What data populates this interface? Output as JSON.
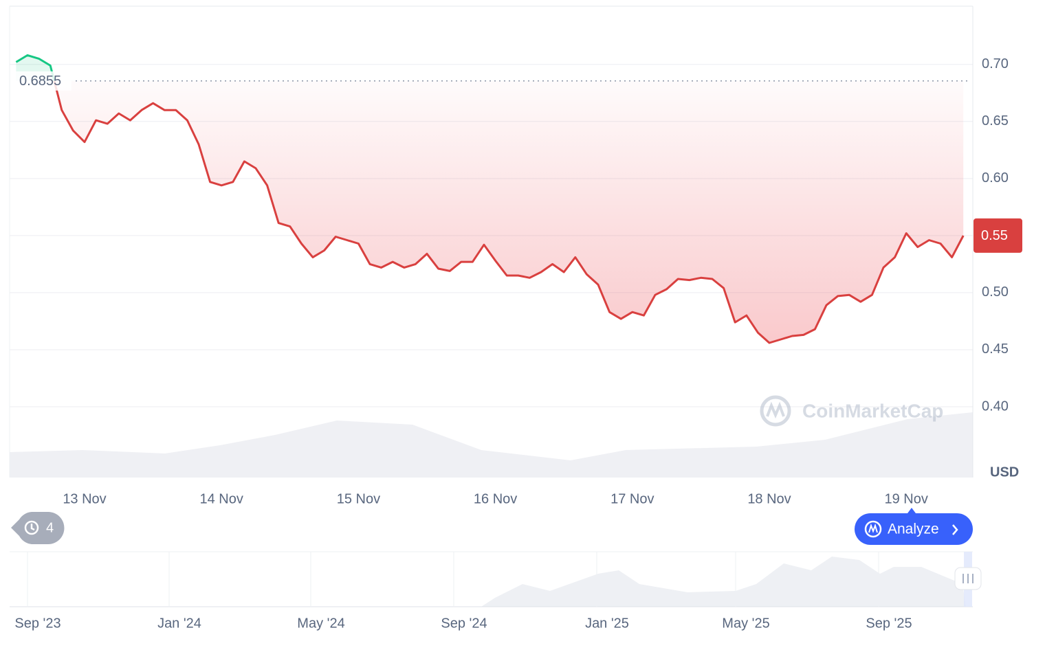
{
  "chart_data": {
    "type": "line",
    "categories": [
      null,
      null,
      null,
      null,
      null,
      null,
      "13 Nov",
      null,
      null,
      null,
      null,
      null,
      null,
      null,
      null,
      null,
      null,
      null,
      "14 Nov",
      null,
      null,
      null,
      null,
      null,
      null,
      null,
      null,
      null,
      null,
      null,
      "15 Nov",
      null,
      null,
      null,
      null,
      null,
      null,
      null,
      null,
      null,
      null,
      null,
      "16 Nov",
      null,
      null,
      null,
      null,
      null,
      null,
      null,
      null,
      null,
      null,
      null,
      "17 Nov",
      null,
      null,
      null,
      null,
      null,
      null,
      null,
      null,
      null,
      null,
      null,
      "18 Nov",
      null,
      null,
      null,
      null,
      null,
      null,
      null,
      null,
      null,
      null,
      null,
      "19 Nov",
      null,
      null,
      null,
      null,
      null
    ],
    "series": [
      {
        "color": "#d9403f",
        "above_color": "#16c784",
        "values": [
          0.702,
          0.708,
          0.705,
          0.699,
          0.66,
          0.642,
          0.632,
          0.651,
          0.648,
          0.657,
          0.651,
          0.66,
          0.666,
          0.66,
          0.66,
          0.651,
          0.63,
          0.597,
          0.594,
          0.597,
          0.615,
          0.609,
          0.594,
          0.561,
          0.558,
          0.543,
          0.531,
          0.537,
          0.549,
          0.546,
          0.543,
          0.525,
          0.522,
          0.527,
          0.522,
          0.525,
          0.534,
          0.521,
          0.519,
          0.527,
          0.527,
          0.542,
          0.528,
          0.515,
          0.515,
          0.513,
          0.518,
          0.525,
          0.518,
          0.531,
          0.516,
          0.507,
          0.483,
          0.477,
          0.483,
          0.48,
          0.498,
          0.503,
          0.512,
          0.511,
          0.513,
          0.512,
          0.504,
          0.474,
          0.48,
          0.465,
          0.456,
          0.459,
          0.462,
          0.463,
          0.468,
          0.489,
          0.497,
          0.498,
          0.492,
          0.498,
          0.522,
          0.531,
          0.552,
          0.54,
          0.546,
          0.543,
          0.531,
          0.55
        ]
      }
    ],
    "ylim": [
      0.338,
      0.7504
    ],
    "yticks": [
      {
        "value": 0.4,
        "label": "0.40"
      },
      0.45,
      {
        "value": 0.5,
        "label": "0.50"
      },
      0.55,
      {
        "value": 0.6,
        "label": "0.60"
      },
      0.65,
      {
        "value": 0.7,
        "label": "0.70"
      }
    ],
    "grid": true,
    "reference_value": 0.6855,
    "current_price": 0.55,
    "currency": "USD",
    "watermark": "CoinMarketCap",
    "history_count": 4,
    "button": "Analyze",
    "navigator_labels": [
      "Sep '23",
      "Jan '24",
      "May '24",
      "Sep '24",
      "Jan '25",
      "May '25",
      "Sep '25"
    ]
  }
}
